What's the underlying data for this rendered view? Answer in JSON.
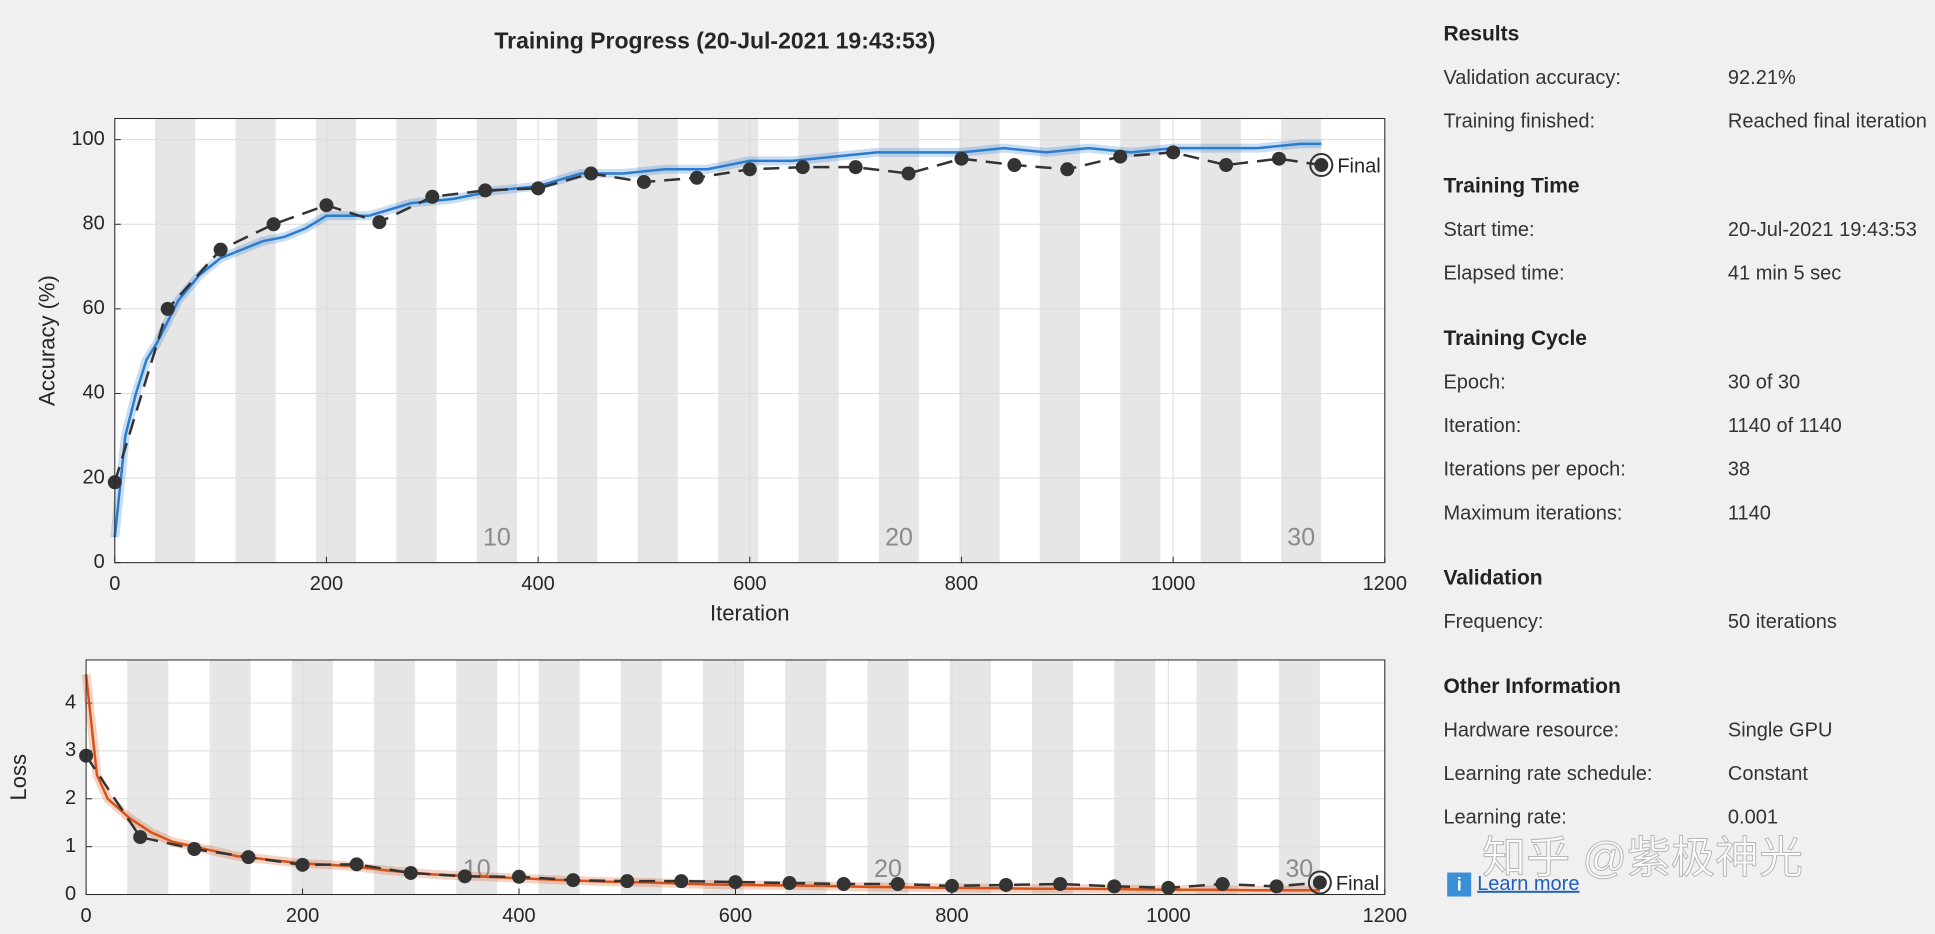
{
  "chart_data": [
    {
      "type": "line",
      "title": "Training Progress (20-Jul-2021 19:43:53)",
      "xlabel": "Iteration",
      "ylabel": "Accuracy (%)",
      "xlim": [
        0,
        1200
      ],
      "xticks": [
        0,
        200,
        400,
        600,
        800,
        1000,
        1200
      ],
      "ylim": [
        0,
        105
      ],
      "yticks": [
        0,
        20,
        40,
        60,
        80,
        100
      ],
      "grid": true,
      "epoch_iterations": 38,
      "epoch_count": 30,
      "epoch_labels": [
        10,
        20,
        30
      ],
      "final_label": "Final",
      "series": [
        {
          "color": "#2b7bce",
          "x": [
            0,
            10,
            20,
            30,
            40,
            60,
            80,
            100,
            120,
            140,
            160,
            180,
            200,
            240,
            280,
            320,
            360,
            400,
            440,
            480,
            520,
            560,
            600,
            640,
            680,
            720,
            760,
            800,
            840,
            880,
            920,
            960,
            1000,
            1040,
            1080,
            1120,
            1140
          ],
          "values": [
            6,
            30,
            40,
            48,
            52,
            62,
            68,
            72,
            74,
            76,
            77,
            79,
            82,
            82,
            85,
            86,
            88,
            89,
            92,
            92,
            93,
            93,
            95,
            95,
            96,
            97,
            97,
            97,
            98,
            97,
            98,
            97,
            98,
            98,
            98,
            99,
            99
          ]
        },
        {
          "color": "#333333",
          "dashed": true,
          "markers": true,
          "x": [
            0,
            50,
            100,
            150,
            200,
            250,
            300,
            350,
            400,
            450,
            500,
            550,
            600,
            650,
            700,
            750,
            800,
            850,
            900,
            950,
            1000,
            1050,
            1100,
            1140
          ],
          "values": [
            19,
            60,
            74,
            80,
            84.5,
            80.5,
            86.5,
            88,
            88.5,
            92,
            90,
            91,
            93,
            93.5,
            93.5,
            92,
            95.5,
            94,
            93,
            96,
            97,
            94,
            95.5,
            94
          ]
        }
      ]
    },
    {
      "type": "line",
      "xlabel": "Iteration",
      "ylabel": "Loss",
      "xlim": [
        0,
        1200
      ],
      "xticks": [
        0,
        200,
        400,
        600,
        800,
        1000,
        1200
      ],
      "ylim": [
        0,
        4.9
      ],
      "yticks": [
        0,
        1,
        2,
        3,
        4
      ],
      "grid": true,
      "epoch_iterations": 38,
      "epoch_count": 30,
      "epoch_labels": [
        10,
        20,
        30
      ],
      "final_label": "Final",
      "series": [
        {
          "color": "#d95319",
          "x": [
            0,
            10,
            20,
            30,
            40,
            60,
            80,
            100,
            120,
            140,
            160,
            180,
            200,
            240,
            280,
            320,
            360,
            400,
            440,
            480,
            520,
            560,
            600,
            640,
            680,
            720,
            760,
            800,
            840,
            880,
            920,
            960,
            1000,
            1040,
            1080,
            1120,
            1140
          ],
          "values": [
            4.6,
            2.5,
            2.0,
            1.8,
            1.6,
            1.3,
            1.1,
            1.0,
            0.9,
            0.8,
            0.75,
            0.7,
            0.65,
            0.6,
            0.5,
            0.42,
            0.38,
            0.34,
            0.3,
            0.27,
            0.25,
            0.22,
            0.2,
            0.19,
            0.18,
            0.16,
            0.15,
            0.14,
            0.13,
            0.12,
            0.12,
            0.11,
            0.1,
            0.1,
            0.09,
            0.09,
            0.09
          ]
        },
        {
          "color": "#333333",
          "dashed": true,
          "markers": true,
          "x": [
            0,
            50,
            100,
            150,
            200,
            250,
            300,
            350,
            400,
            450,
            500,
            550,
            600,
            650,
            700,
            750,
            800,
            850,
            900,
            950,
            1000,
            1050,
            1100,
            1140
          ],
          "values": [
            2.9,
            1.2,
            0.95,
            0.78,
            0.62,
            0.63,
            0.45,
            0.38,
            0.37,
            0.3,
            0.28,
            0.28,
            0.26,
            0.24,
            0.22,
            0.22,
            0.18,
            0.2,
            0.22,
            0.17,
            0.14,
            0.22,
            0.17,
            0.25
          ]
        }
      ]
    }
  ],
  "panel": {
    "sections": [
      {
        "title": "Results",
        "rows": [
          [
            "Validation accuracy:",
            "92.21%"
          ],
          [
            "Training finished:",
            "Reached final iteration"
          ]
        ]
      },
      {
        "title": "Training Time",
        "rows": [
          [
            "Start time:",
            "20-Jul-2021 19:43:53"
          ],
          [
            "Elapsed time:",
            "41 min 5 sec"
          ]
        ]
      },
      {
        "title": "Training Cycle",
        "rows": [
          [
            "Epoch:",
            "30 of 30"
          ],
          [
            "Iteration:",
            "1140 of 1140"
          ],
          [
            "Iterations per epoch:",
            "38"
          ],
          [
            "Maximum iterations:",
            "1140"
          ]
        ]
      },
      {
        "title": "Validation",
        "rows": [
          [
            "Frequency:",
            "50 iterations"
          ]
        ]
      },
      {
        "title": "Other Information",
        "rows": [
          [
            "Hardware resource:",
            "Single GPU"
          ],
          [
            "Learning rate schedule:",
            "Constant"
          ],
          [
            "Learning rate:",
            "0.001"
          ]
        ]
      }
    ],
    "link": "Learn more"
  },
  "watermark": "知乎 @紫极神光"
}
